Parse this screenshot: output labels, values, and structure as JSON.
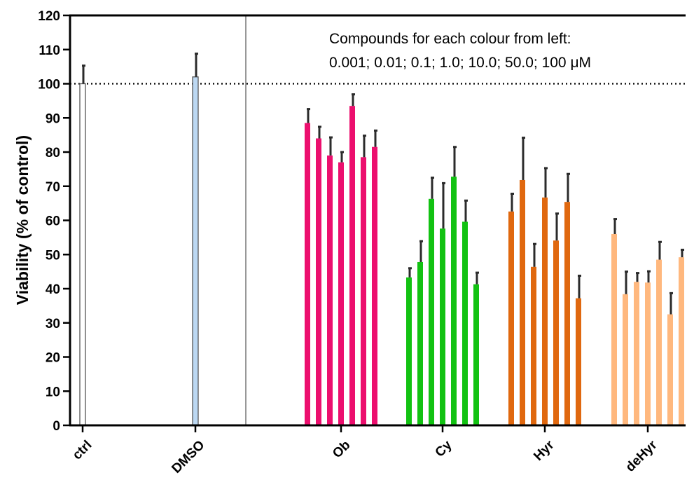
{
  "chart_data": {
    "type": "bar",
    "ylabel": "Viability (% of control)",
    "xlabel": "",
    "ylim": [
      0,
      120
    ],
    "yticks": [
      0,
      10,
      20,
      30,
      40,
      50,
      60,
      70,
      80,
      90,
      100,
      110,
      120
    ],
    "reference_line": 100,
    "annotation": {
      "line1": "Compounds for each colour from left:",
      "line2": "0.001; 0.01; 0.1; 1.0; 10.0; 50.0; 100 μM"
    },
    "groups": [
      {
        "label": "ctrl",
        "color": "#ffffff",
        "stroke": "#555555",
        "values": [
          100
        ],
        "errors": [
          5.5
        ]
      },
      {
        "label": "DMSO",
        "color": "#bcd8f2",
        "stroke": "#555555",
        "values": [
          102
        ],
        "errors": [
          7
        ]
      },
      {
        "label": "Ob",
        "color": "#ec0f6e",
        "values": [
          88.5,
          84,
          79,
          77,
          93.5,
          78.5,
          81.5
        ],
        "errors": [
          4.3,
          3.6,
          5.5,
          3.2,
          3.6,
          6.5,
          5
        ]
      },
      {
        "label": "Cy",
        "color": "#12c212",
        "values": [
          43.3,
          47.8,
          66.3,
          57.6,
          72.8,
          59.6,
          41.3
        ],
        "errors": [
          2.9,
          6.3,
          6.4,
          13.5,
          8.9,
          6.4,
          3.6
        ]
      },
      {
        "label": "Hyr",
        "color": "#e0680f",
        "values": [
          62.6,
          71.8,
          46.4,
          66.7,
          54.1,
          65.4,
          37.2
        ],
        "errors": [
          5.4,
          12.6,
          6.9,
          8.8,
          8.1,
          8.4,
          6.8
        ]
      },
      {
        "label": "deHyr",
        "color": "#ffb87e",
        "values": [
          56,
          38.4,
          42,
          41.8,
          48.5,
          32.5,
          49.2
        ],
        "errors": [
          4.6,
          6.8,
          2.8,
          3.5,
          5.4,
          6.4,
          2.4
        ]
      }
    ]
  }
}
